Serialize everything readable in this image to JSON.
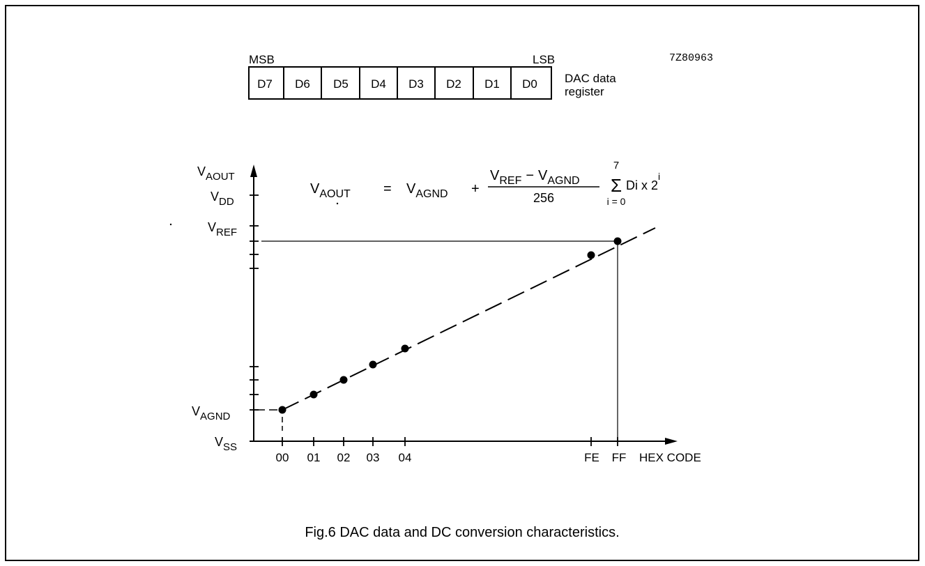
{
  "register": {
    "msb": "MSB",
    "lsb": "LSB",
    "bits": [
      "D7",
      "D6",
      "D5",
      "D4",
      "D3",
      "D2",
      "D1",
      "D0"
    ],
    "label_line1": "DAC data",
    "label_line2": "register",
    "code": "7Z80963"
  },
  "axis": {
    "y_main": "V",
    "y_sub": "AOUT",
    "x_label": "HEX CODE",
    "y_ticks": [
      {
        "main": "V",
        "sub": "DD"
      },
      {
        "main": "V",
        "sub": "REF"
      },
      {
        "main": "V",
        "sub": "AGND"
      },
      {
        "main": "V",
        "sub": "SS"
      }
    ],
    "x_ticks": [
      "00",
      "01",
      "02",
      "03",
      "04",
      "FE",
      "FF"
    ]
  },
  "formula": {
    "lhs_main": "V",
    "lhs_sub": "AOUT",
    "eq": "=",
    "term_main": "V",
    "term_sub": "AGND",
    "plus": "+",
    "num_a_main": "V",
    "num_a_sub": "REF",
    "minus": "−",
    "num_b_main": "V",
    "num_b_sub": "AGND",
    "den": "256",
    "sum_top": "7",
    "sum_symbol": "Σ",
    "sum_bottom": "i = 0",
    "tail": "Di x 2",
    "tail_sup": "i"
  },
  "caption": "Fig.6  DAC data and DC conversion characteristics."
}
